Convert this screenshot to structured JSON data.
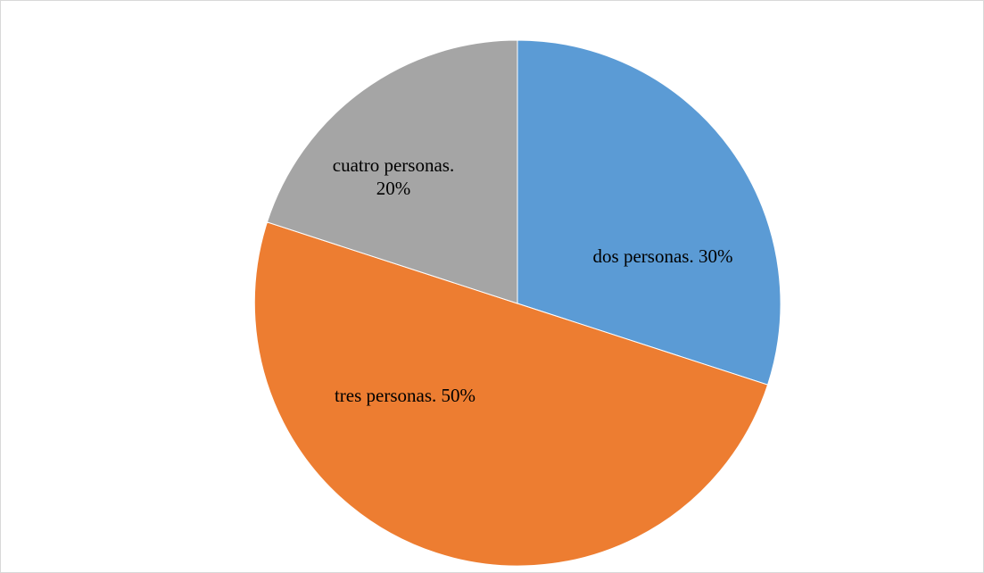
{
  "chart_data": {
    "type": "pie",
    "title": "",
    "start_angle_deg": 0,
    "direction": "clockwise",
    "slices": [
      {
        "label": "dos personas",
        "value": 30,
        "label_lines": [
          "dos personas. 30%"
        ],
        "color": "#5B9BD5"
      },
      {
        "label": "tres personas",
        "value": 50,
        "label_lines": [
          "tres personas. 50%"
        ],
        "color": "#ED7D31"
      },
      {
        "label": "cuatro personas",
        "value": 20,
        "label_lines": [
          "cuatro personas.",
          "20%"
        ],
        "color": "#A5A5A5"
      }
    ],
    "legend": "none",
    "data_labels": "inside"
  }
}
